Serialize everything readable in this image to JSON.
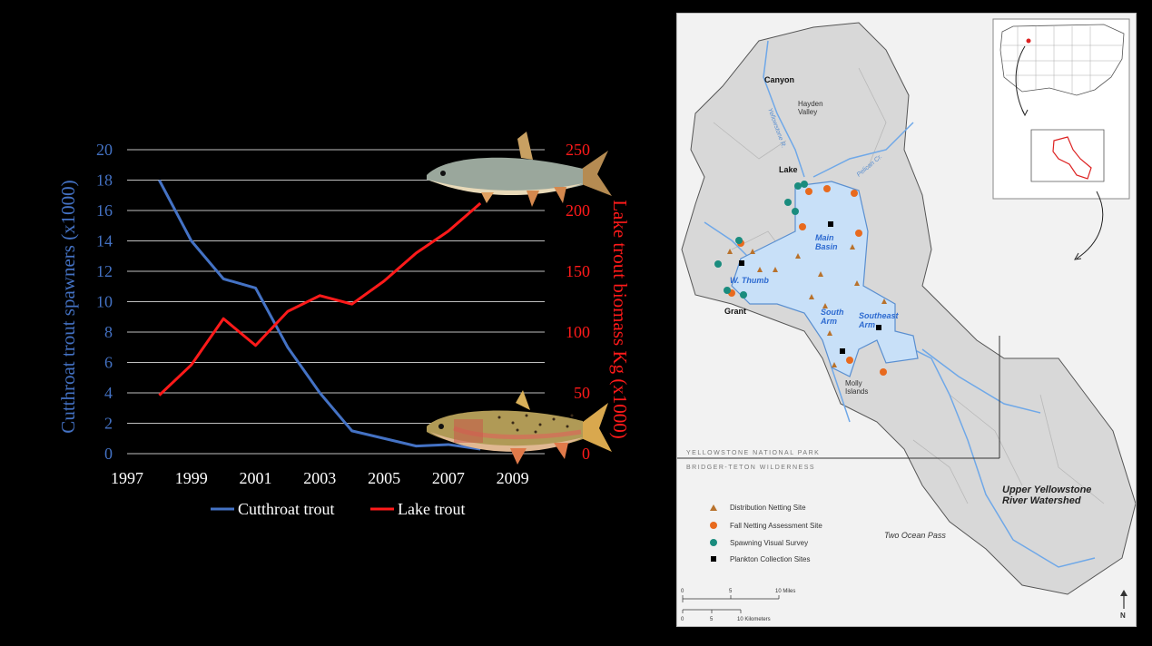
{
  "colors": {
    "background": "#000000",
    "cutthroat": "#4472C4",
    "lake": "#FF1A1A",
    "grid": "#BFBFBF",
    "axis_text": "#FFFFFF",
    "lake_water": "#C8E0F8",
    "river": "#6FA8E8",
    "triangle_marker": "#B8722C",
    "circle_marker": "#E86A1E",
    "teal_marker": "#1A8C7E",
    "square_marker": "#000000"
  },
  "chart_data": {
    "type": "line",
    "x": [
      1998,
      1999,
      2000,
      2001,
      2002,
      2003,
      2004,
      2005,
      2006,
      2007,
      2008
    ],
    "x_ticks": [
      "1997",
      "1999",
      "2001",
      "2003",
      "2005",
      "2007",
      "2009"
    ],
    "xlim": [
      1997,
      2010
    ],
    "series": [
      {
        "name": "Cutthroat trout",
        "axis": "left",
        "values": [
          18,
          14,
          11.5,
          10.9,
          7,
          4,
          1.5,
          1,
          0.5,
          0.6,
          0.3
        ]
      },
      {
        "name": "Lake trout",
        "axis": "right",
        "values": [
          48,
          73,
          111,
          89,
          117,
          130,
          123,
          142,
          165,
          183,
          206
        ]
      }
    ],
    "y_left": {
      "label": "Cutthroat trout spawners (x1000)",
      "ticks": [
        "0",
        "2",
        "4",
        "6",
        "8",
        "10",
        "12",
        "14",
        "16",
        "18",
        "20"
      ],
      "ylim": [
        0,
        20
      ]
    },
    "y_right": {
      "label": "Lake trout biomass Kg (x1000)",
      "ticks": [
        "0",
        "50",
        "100",
        "150",
        "200",
        "250"
      ],
      "ylim": [
        0,
        250
      ]
    },
    "grid": true,
    "legend": "bottom"
  },
  "map": {
    "places": {
      "canyon": "Canyon",
      "hayden_valley": "Hayden\nValley",
      "lake": "Lake",
      "main_basin": "Main\nBasin",
      "w_thumb": "W. Thumb",
      "grant": "Grant",
      "south_arm": "South\nArm",
      "southeast_arm": "Southeast\nArm",
      "molly_islands": "Molly\nIslands",
      "two_ocean_pass": "Two Ocean Pass",
      "upper_yellowstone": "Upper Yellowstone\nRiver Watershed",
      "yellowstone_river": "Yellowstone R.",
      "pelican_cr": "Pelican Cr.",
      "yellowstone_np": "YELLOWSTONE NATIONAL PARK",
      "bridger_teton": "BRIDGER-TETON WILDERNESS"
    },
    "legend": [
      {
        "shape": "triangle",
        "label": "Distribution Netting Site"
      },
      {
        "shape": "circle",
        "label": "Fall Netting Assessment Site"
      },
      {
        "shape": "teal",
        "label": "Spawning Visual Survey"
      },
      {
        "shape": "square",
        "label": "Plankton Collection Sites"
      }
    ],
    "scale": {
      "miles_ticks": [
        "0",
        "5",
        "10 Miles"
      ],
      "km_ticks": [
        "0",
        "5",
        "10 Kilometers"
      ]
    },
    "north": "N"
  }
}
